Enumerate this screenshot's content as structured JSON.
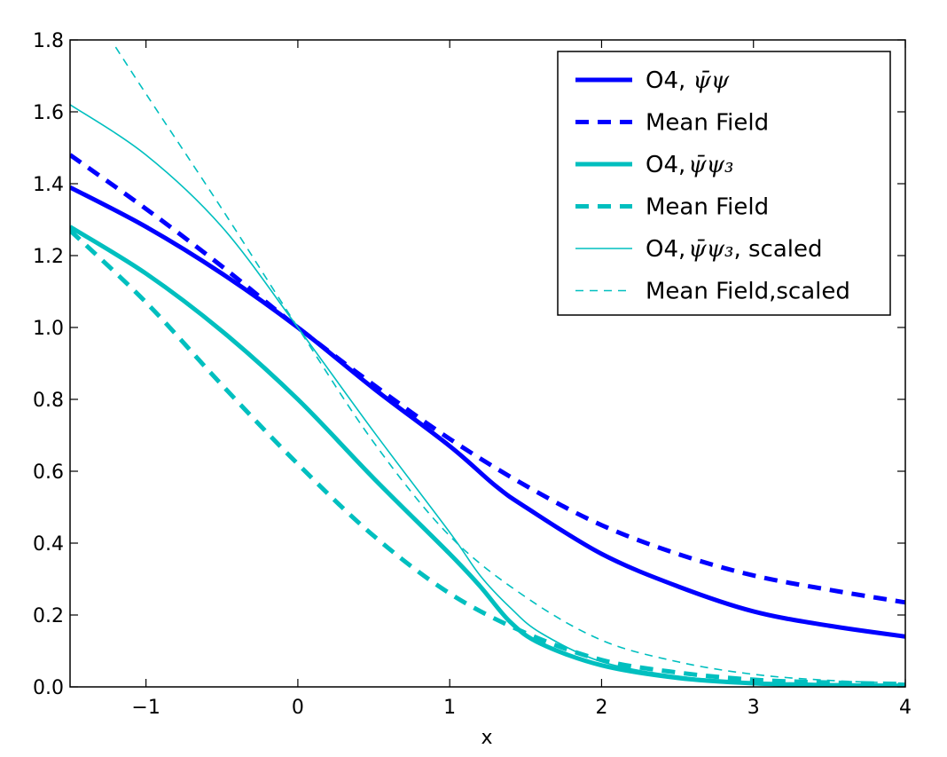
{
  "chart_data": {
    "type": "line",
    "title": "",
    "xlabel": "x",
    "ylabel": "",
    "xlim": [
      -1.5,
      4
    ],
    "ylim": [
      0,
      1.8
    ],
    "grid": false,
    "legend_position": "top-right",
    "xticks": [
      -1,
      0,
      1,
      2,
      3,
      4
    ],
    "xtick_labels": [
      "−1",
      "0",
      "1",
      "2",
      "3",
      "4"
    ],
    "yticks": [
      0.0,
      0.2,
      0.4,
      0.6,
      0.8,
      1.0,
      1.2,
      1.4,
      1.6,
      1.8
    ],
    "ytick_labels": [
      "0.0",
      "0.2",
      "0.4",
      "0.6",
      "0.8",
      "1.0",
      "1.2",
      "1.4",
      "1.6",
      "1.8"
    ],
    "series": [
      {
        "name": "O4, ψ̄ψ",
        "legend_prefix": "O4, ",
        "legend_math": "ψ̄ψ",
        "legend_suffix": "",
        "color": "#0000ff",
        "style": "solid",
        "weight": "thick",
        "x": [
          -1.5,
          -1.0,
          -0.5,
          0.0,
          0.5,
          1.0,
          1.3,
          1.5,
          2.0,
          2.5,
          3.0,
          3.5,
          4.0
        ],
        "y": [
          1.39,
          1.28,
          1.15,
          1.0,
          0.83,
          0.67,
          0.56,
          0.5,
          0.37,
          0.28,
          0.21,
          0.17,
          0.14
        ]
      },
      {
        "name": "Mean Field",
        "legend_prefix": "Mean Field",
        "legend_math": "",
        "legend_suffix": "",
        "color": "#0000ff",
        "style": "dashed",
        "weight": "thick",
        "x": [
          -1.5,
          -1.0,
          -0.5,
          0.0,
          0.5,
          1.0,
          1.5,
          2.0,
          2.5,
          3.0,
          3.5,
          4.0
        ],
        "y": [
          1.48,
          1.33,
          1.17,
          1.0,
          0.84,
          0.69,
          0.56,
          0.45,
          0.37,
          0.31,
          0.27,
          0.235
        ]
      },
      {
        "name": "O4, ψ̄ψ₃",
        "legend_prefix": "O4,",
        "legend_math": "ψ̄ψ₃",
        "legend_suffix": "",
        "color": "#00bfbf",
        "style": "solid",
        "weight": "thick",
        "x": [
          -1.5,
          -1.0,
          -0.5,
          0.0,
          0.5,
          1.0,
          1.2,
          1.4,
          1.6,
          2.0,
          2.5,
          3.0,
          3.5,
          4.0
        ],
        "y": [
          1.28,
          1.15,
          0.99,
          0.8,
          0.58,
          0.37,
          0.28,
          0.18,
          0.12,
          0.06,
          0.025,
          0.01,
          0.005,
          0.003
        ]
      },
      {
        "name": "Mean Field",
        "legend_prefix": "Mean Field",
        "legend_math": "",
        "legend_suffix": "",
        "color": "#00bfbf",
        "style": "dashed",
        "weight": "thick",
        "x": [
          -1.5,
          -1.0,
          -0.5,
          0.0,
          0.5,
          1.0,
          1.5,
          2.0,
          2.5,
          3.0,
          3.5,
          4.0
        ],
        "y": [
          1.27,
          1.07,
          0.84,
          0.62,
          0.42,
          0.26,
          0.15,
          0.075,
          0.04,
          0.02,
          0.012,
          0.008
        ]
      },
      {
        "name": "O4, ψ̄ψ₃, scaled",
        "legend_prefix": "O4,",
        "legend_math": "ψ̄ψ₃",
        "legend_suffix": ", scaled",
        "color": "#00bfbf",
        "style": "solid",
        "weight": "thin",
        "x": [
          -1.5,
          -1.0,
          -0.5,
          0.0,
          0.5,
          1.0,
          1.2,
          1.4,
          1.6,
          2.0,
          2.5,
          3.0,
          3.5,
          4.0
        ],
        "y": [
          1.62,
          1.48,
          1.28,
          1.0,
          0.71,
          0.43,
          0.31,
          0.22,
          0.15,
          0.07,
          0.03,
          0.012,
          0.006,
          0.004
        ]
      },
      {
        "name": "Mean Field,scaled",
        "legend_prefix": "Mean Field,scaled",
        "legend_math": "",
        "legend_suffix": "",
        "color": "#00bfbf",
        "style": "dashed",
        "weight": "thin",
        "x": [
          -1.2,
          -1.0,
          -0.5,
          0.0,
          0.5,
          1.0,
          1.5,
          2.0,
          2.5,
          3.0,
          3.5,
          4.0
        ],
        "y": [
          1.78,
          1.65,
          1.33,
          1.0,
          0.68,
          0.42,
          0.25,
          0.13,
          0.07,
          0.035,
          0.018,
          0.01
        ]
      }
    ]
  }
}
